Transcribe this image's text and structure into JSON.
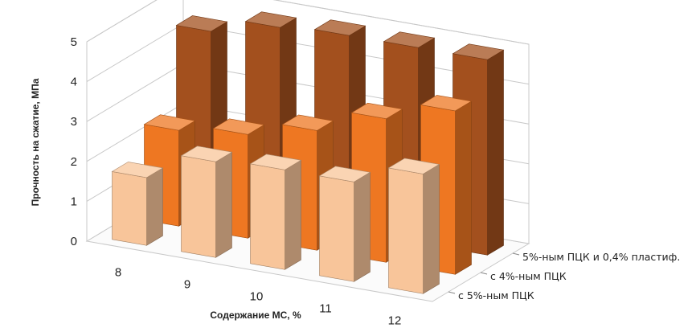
{
  "chart_data": {
    "type": "bar",
    "style": "3d-column",
    "categories": [
      "8",
      "9",
      "10",
      "11",
      "12"
    ],
    "series": [
      {
        "name": "с 5%-ным ПЦК",
        "values": [
          1.7,
          2.4,
          2.5,
          2.5,
          3.0
        ],
        "color": "#F8C59A"
      },
      {
        "name": "с 4%-ным ПЦК",
        "values": [
          2.4,
          2.6,
          3.0,
          3.6,
          4.1
        ],
        "color": "#EE7722"
      },
      {
        "name": "5%-ным ПЦК и 0,4% пластиф.",
        "values": [
          4.4,
          4.8,
          4.9,
          4.9,
          4.9
        ],
        "color": "#A3501E"
      }
    ],
    "xlabel": "Содержание МС, %",
    "ylabel": "Прочность на сжатие, МПа",
    "y_ticks": [
      "0",
      "1",
      "2",
      "3",
      "4",
      "5"
    ],
    "ylim": [
      0,
      5
    ],
    "grid": true
  }
}
